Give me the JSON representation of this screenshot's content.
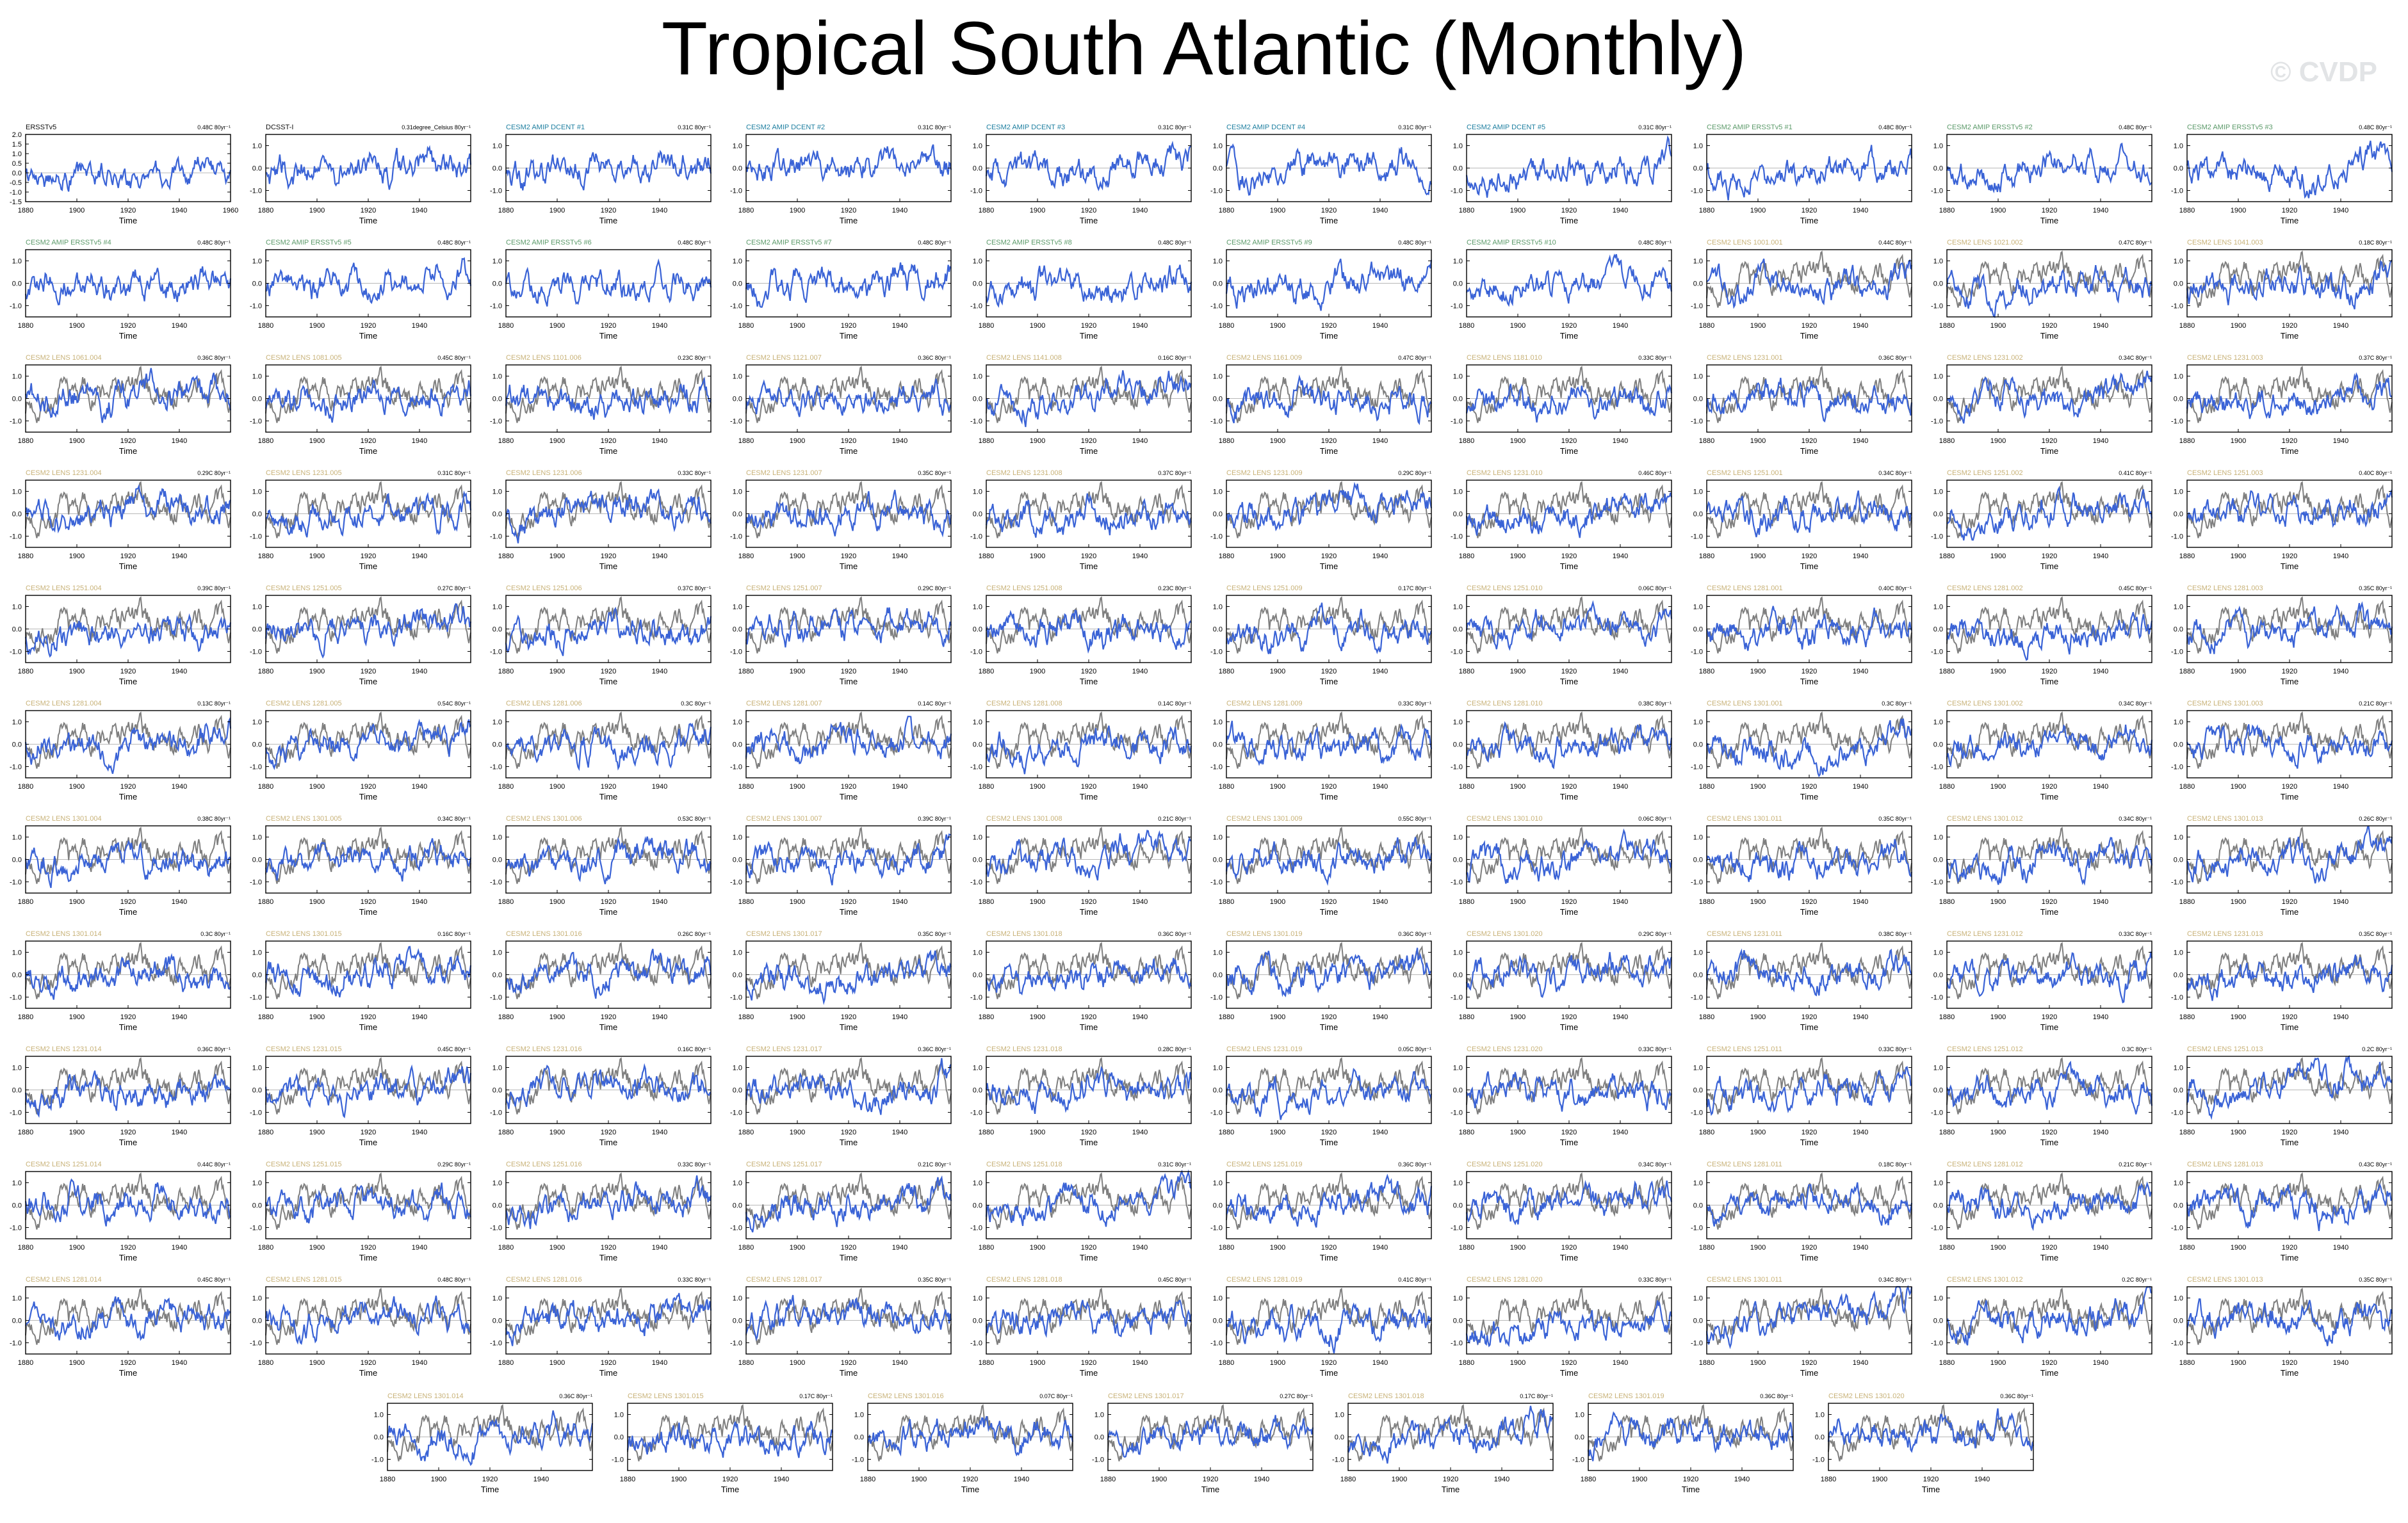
{
  "title": "Tropical South Atlantic (Monthly)",
  "watermark": "© CVDP",
  "colors": {
    "model_line": "#3a63d6",
    "obs_line": "#7f7f7f",
    "label_obs": "#111111",
    "label_amip_dcent": "#1e7fa0",
    "label_amip_ersst": "#5c9a6a",
    "label_lens": "#c8b278"
  },
  "chart_data": {
    "type": "line",
    "panel_count": 117,
    "x_ticks": [
      "1880",
      "1900",
      "1920",
      "1940",
      "1960"
    ],
    "y_ticks_first": [
      "2.0",
      "1.5",
      "1.0",
      "0.5",
      "0.0",
      "-0.5",
      "-1.0",
      "-1.5"
    ],
    "y_ticks": [
      "1.0",
      "0.0",
      "-1.0"
    ],
    "xlim": [
      1880,
      1960
    ],
    "ylim": [
      -1.5,
      2.0
    ],
    "xlabel": "Time",
    "panels": [
      {
        "label": "ERSSTv5",
        "trend": "0.48C 80yr⁻¹",
        "series": "obs"
      },
      {
        "label": "DCSST-I",
        "trend": "0.31degree_Celsius 80yr⁻¹",
        "series": "obs"
      },
      {
        "label": "CESM2 AMIP DCENT #1",
        "trend": "0.31C 80yr⁻¹",
        "series": "amip-dcent"
      },
      {
        "label": "CESM2 AMIP DCENT #2",
        "trend": "0.31C 80yr⁻¹",
        "series": "amip-dcent"
      },
      {
        "label": "CESM2 AMIP DCENT #3",
        "trend": "0.31C 80yr⁻¹",
        "series": "amip-dcent"
      },
      {
        "label": "CESM2 AMIP DCENT #4",
        "trend": "0.31C 80yr⁻¹",
        "series": "amip-dcent"
      },
      {
        "label": "CESM2 AMIP DCENT #5",
        "trend": "0.31C 80yr⁻¹",
        "series": "amip-dcent"
      },
      {
        "label": "CESM2 AMIP ERSSTv5 #1",
        "trend": "0.48C 80yr⁻¹",
        "series": "amip-ersst"
      },
      {
        "label": "CESM2 AMIP ERSSTv5 #2",
        "trend": "0.48C 80yr⁻¹",
        "series": "amip-ersst"
      },
      {
        "label": "CESM2 AMIP ERSSTv5 #3",
        "trend": "0.48C 80yr⁻¹",
        "series": "amip-ersst"
      },
      {
        "label": "CESM2 AMIP ERSSTv5 #4",
        "trend": "0.48C 80yr⁻¹",
        "series": "amip-ersst"
      },
      {
        "label": "CESM2 AMIP ERSSTv5 #5",
        "trend": "0.48C 80yr⁻¹",
        "series": "amip-ersst"
      },
      {
        "label": "CESM2 AMIP ERSSTv5 #6",
        "trend": "0.48C 80yr⁻¹",
        "series": "amip-ersst"
      },
      {
        "label": "CESM2 AMIP ERSSTv5 #7",
        "trend": "0.48C 80yr⁻¹",
        "series": "amip-ersst"
      },
      {
        "label": "CESM2 AMIP ERSSTv5 #8",
        "trend": "0.48C 80yr⁻¹",
        "series": "amip-ersst"
      },
      {
        "label": "CESM2 AMIP ERSSTv5 #9",
        "trend": "0.48C 80yr⁻¹",
        "series": "amip-ersst"
      },
      {
        "label": "CESM2 AMIP ERSSTv5 #10",
        "trend": "0.48C 80yr⁻¹",
        "series": "amip-ersst"
      },
      {
        "label": "CESM2 LENS 1001.001",
        "trend": "0.44C 80yr⁻¹",
        "series": "lens"
      },
      {
        "label": "CESM2 LENS 1021.002",
        "trend": "0.47C 80yr⁻¹",
        "series": "lens"
      },
      {
        "label": "CESM2 LENS 1041.003",
        "trend": "0.18C 80yr⁻¹",
        "series": "lens"
      },
      {
        "label": "CESM2 LENS 1061.004",
        "trend": "0.36C 80yr⁻¹",
        "series": "lens"
      },
      {
        "label": "CESM2 LENS 1081.005",
        "trend": "0.45C 80yr⁻¹",
        "series": "lens"
      },
      {
        "label": "CESM2 LENS 1101.006",
        "trend": "0.23C 80yr⁻¹",
        "series": "lens"
      },
      {
        "label": "CESM2 LENS 1121.007",
        "trend": "0.36C 80yr⁻¹",
        "series": "lens"
      },
      {
        "label": "CESM2 LENS 1141.008",
        "trend": "0.16C 80yr⁻¹",
        "series": "lens"
      },
      {
        "label": "CESM2 LENS 1161.009",
        "trend": "0.47C 80yr⁻¹",
        "series": "lens"
      },
      {
        "label": "CESM2 LENS 1181.010",
        "trend": "0.33C 80yr⁻¹",
        "series": "lens"
      },
      {
        "label": "CESM2 LENS 1231.001",
        "trend": "0.36C 80yr⁻¹",
        "series": "lens"
      },
      {
        "label": "CESM2 LENS 1231.002",
        "trend": "0.34C 80yr⁻¹",
        "series": "lens"
      },
      {
        "label": "CESM2 LENS 1231.003",
        "trend": "0.37C 80yr⁻¹",
        "series": "lens"
      },
      {
        "label": "CESM2 LENS 1231.004",
        "trend": "0.29C 80yr⁻¹",
        "series": "lens"
      },
      {
        "label": "CESM2 LENS 1231.005",
        "trend": "0.31C 80yr⁻¹",
        "series": "lens"
      },
      {
        "label": "CESM2 LENS 1231.006",
        "trend": "0.33C 80yr⁻¹",
        "series": "lens"
      },
      {
        "label": "CESM2 LENS 1231.007",
        "trend": "0.35C 80yr⁻¹",
        "series": "lens"
      },
      {
        "label": "CESM2 LENS 1231.008",
        "trend": "0.37C 80yr⁻¹",
        "series": "lens"
      },
      {
        "label": "CESM2 LENS 1231.009",
        "trend": "0.29C 80yr⁻¹",
        "series": "lens"
      },
      {
        "label": "CESM2 LENS 1231.010",
        "trend": "0.46C 80yr⁻¹",
        "series": "lens"
      },
      {
        "label": "CESM2 LENS 1251.001",
        "trend": "0.34C 80yr⁻¹",
        "series": "lens"
      },
      {
        "label": "CESM2 LENS 1251.002",
        "trend": "0.41C 80yr⁻¹",
        "series": "lens"
      },
      {
        "label": "CESM2 LENS 1251.003",
        "trend": "0.40C 80yr⁻¹",
        "series": "lens"
      },
      {
        "label": "CESM2 LENS 1251.004",
        "trend": "0.39C 80yr⁻¹",
        "series": "lens"
      },
      {
        "label": "CESM2 LENS 1251.005",
        "trend": "0.27C 80yr⁻¹",
        "series": "lens"
      },
      {
        "label": "CESM2 LENS 1251.006",
        "trend": "0.37C 80yr⁻¹",
        "series": "lens"
      },
      {
        "label": "CESM2 LENS 1251.007",
        "trend": "0.29C 80yr⁻¹",
        "series": "lens"
      },
      {
        "label": "CESM2 LENS 1251.008",
        "trend": "0.23C 80yr⁻¹",
        "series": "lens"
      },
      {
        "label": "CESM2 LENS 1251.009",
        "trend": "0.17C 80yr⁻¹",
        "series": "lens"
      },
      {
        "label": "CESM2 LENS 1251.010",
        "trend": "0.06C 80yr⁻¹",
        "series": "lens"
      },
      {
        "label": "CESM2 LENS 1281.001",
        "trend": "0.40C 80yr⁻¹",
        "series": "lens"
      },
      {
        "label": "CESM2 LENS 1281.002",
        "trend": "0.45C 80yr⁻¹",
        "series": "lens"
      },
      {
        "label": "CESM2 LENS 1281.003",
        "trend": "0.35C 80yr⁻¹",
        "series": "lens"
      },
      {
        "label": "CESM2 LENS 1281.004",
        "trend": "0.13C 80yr⁻¹",
        "series": "lens"
      },
      {
        "label": "CESM2 LENS 1281.005",
        "trend": "0.54C 80yr⁻¹",
        "series": "lens"
      },
      {
        "label": "CESM2 LENS 1281.006",
        "trend": "0.3C 80yr⁻¹",
        "series": "lens"
      },
      {
        "label": "CESM2 LENS 1281.007",
        "trend": "0.14C 80yr⁻¹",
        "series": "lens"
      },
      {
        "label": "CESM2 LENS 1281.008",
        "trend": "0.14C 80yr⁻¹",
        "series": "lens"
      },
      {
        "label": "CESM2 LENS 1281.009",
        "trend": "0.33C 80yr⁻¹",
        "series": "lens"
      },
      {
        "label": "CESM2 LENS 1281.010",
        "trend": "0.38C 80yr⁻¹",
        "series": "lens"
      },
      {
        "label": "CESM2 LENS 1301.001",
        "trend": "0.3C 80yr⁻¹",
        "series": "lens"
      },
      {
        "label": "CESM2 LENS 1301.002",
        "trend": "0.34C 80yr⁻¹",
        "series": "lens"
      },
      {
        "label": "CESM2 LENS 1301.003",
        "trend": "0.21C 80yr⁻¹",
        "series": "lens"
      },
      {
        "label": "CESM2 LENS 1301.004",
        "trend": "0.38C 80yr⁻¹",
        "series": "lens"
      },
      {
        "label": "CESM2 LENS 1301.005",
        "trend": "0.34C 80yr⁻¹",
        "series": "lens"
      },
      {
        "label": "CESM2 LENS 1301.006",
        "trend": "0.53C 80yr⁻¹",
        "series": "lens"
      },
      {
        "label": "CESM2 LENS 1301.007",
        "trend": "0.39C 80yr⁻¹",
        "series": "lens"
      },
      {
        "label": "CESM2 LENS 1301.008",
        "trend": "0.21C 80yr⁻¹",
        "series": "lens"
      },
      {
        "label": "CESM2 LENS 1301.009",
        "trend": "0.55C 80yr⁻¹",
        "series": "lens"
      },
      {
        "label": "CESM2 LENS 1301.010",
        "trend": "0.06C 80yr⁻¹",
        "series": "lens"
      },
      {
        "label": "CESM2 LENS 1301.011",
        "trend": "0.35C 80yr⁻¹",
        "series": "lens"
      },
      {
        "label": "CESM2 LENS 1301.012",
        "trend": "0.34C 80yr⁻¹",
        "series": "lens"
      },
      {
        "label": "CESM2 LENS 1301.013",
        "trend": "0.26C 80yr⁻¹",
        "series": "lens"
      },
      {
        "label": "CESM2 LENS 1301.014",
        "trend": "0.3C 80yr⁻¹",
        "series": "lens"
      },
      {
        "label": "CESM2 LENS 1301.015",
        "trend": "0.16C 80yr⁻¹",
        "series": "lens"
      },
      {
        "label": "CESM2 LENS 1301.016",
        "trend": "0.26C 80yr⁻¹",
        "series": "lens"
      },
      {
        "label": "CESM2 LENS 1301.017",
        "trend": "0.35C 80yr⁻¹",
        "series": "lens"
      },
      {
        "label": "CESM2 LENS 1301.018",
        "trend": "0.36C 80yr⁻¹",
        "series": "lens"
      },
      {
        "label": "CESM2 LENS 1301.019",
        "trend": "0.36C 80yr⁻¹",
        "series": "lens"
      },
      {
        "label": "CESM2 LENS 1301.020",
        "trend": "0.29C 80yr⁻¹",
        "series": "lens"
      },
      {
        "label": "CESM2 LENS 1231.011",
        "trend": "0.38C 80yr⁻¹",
        "series": "lens"
      },
      {
        "label": "CESM2 LENS 1231.012",
        "trend": "0.33C 80yr⁻¹",
        "series": "lens"
      },
      {
        "label": "CESM2 LENS 1231.013",
        "trend": "0.35C 80yr⁻¹",
        "series": "lens"
      },
      {
        "label": "CESM2 LENS 1231.014",
        "trend": "0.36C 80yr⁻¹",
        "series": "lens"
      },
      {
        "label": "CESM2 LENS 1231.015",
        "trend": "0.45C 80yr⁻¹",
        "series": "lens"
      },
      {
        "label": "CESM2 LENS 1231.016",
        "trend": "0.16C 80yr⁻¹",
        "series": "lens"
      },
      {
        "label": "CESM2 LENS 1231.017",
        "trend": "0.36C 80yr⁻¹",
        "series": "lens"
      },
      {
        "label": "CESM2 LENS 1231.018",
        "trend": "0.28C 80yr⁻¹",
        "series": "lens"
      },
      {
        "label": "CESM2 LENS 1231.019",
        "trend": "0.05C 80yr⁻¹",
        "series": "lens"
      },
      {
        "label": "CESM2 LENS 1231.020",
        "trend": "0.33C 80yr⁻¹",
        "series": "lens"
      },
      {
        "label": "CESM2 LENS 1251.011",
        "trend": "0.33C 80yr⁻¹",
        "series": "lens"
      },
      {
        "label": "CESM2 LENS 1251.012",
        "trend": "0.3C 80yr⁻¹",
        "series": "lens"
      },
      {
        "label": "CESM2 LENS 1251.013",
        "trend": "0.2C 80yr⁻¹",
        "series": "lens"
      },
      {
        "label": "CESM2 LENS 1251.014",
        "trend": "0.44C 80yr⁻¹",
        "series": "lens"
      },
      {
        "label": "CESM2 LENS 1251.015",
        "trend": "0.29C 80yr⁻¹",
        "series": "lens"
      },
      {
        "label": "CESM2 LENS 1251.016",
        "trend": "0.33C 80yr⁻¹",
        "series": "lens"
      },
      {
        "label": "CESM2 LENS 1251.017",
        "trend": "0.21C 80yr⁻¹",
        "series": "lens"
      },
      {
        "label": "CESM2 LENS 1251.018",
        "trend": "0.31C 80yr⁻¹",
        "series": "lens"
      },
      {
        "label": "CESM2 LENS 1251.019",
        "trend": "0.36C 80yr⁻¹",
        "series": "lens"
      },
      {
        "label": "CESM2 LENS 1251.020",
        "trend": "0.34C 80yr⁻¹",
        "series": "lens"
      },
      {
        "label": "CESM2 LENS 1281.011",
        "trend": "0.18C 80yr⁻¹",
        "series": "lens"
      },
      {
        "label": "CESM2 LENS 1281.012",
        "trend": "0.21C 80yr⁻¹",
        "series": "lens"
      },
      {
        "label": "CESM2 LENS 1281.013",
        "trend": "0.43C 80yr⁻¹",
        "series": "lens"
      },
      {
        "label": "CESM2 LENS 1281.014",
        "trend": "0.45C 80yr⁻¹",
        "series": "lens"
      },
      {
        "label": "CESM2 LENS 1281.015",
        "trend": "0.48C 80yr⁻¹",
        "series": "lens"
      },
      {
        "label": "CESM2 LENS 1281.016",
        "trend": "0.33C 80yr⁻¹",
        "series": "lens"
      },
      {
        "label": "CESM2 LENS 1281.017",
        "trend": "0.35C 80yr⁻¹",
        "series": "lens"
      },
      {
        "label": "CESM2 LENS 1281.018",
        "trend": "0.45C 80yr⁻¹",
        "series": "lens"
      },
      {
        "label": "CESM2 LENS 1281.019",
        "trend": "0.41C 80yr⁻¹",
        "series": "lens"
      },
      {
        "label": "CESM2 LENS 1281.020",
        "trend": "0.33C 80yr⁻¹",
        "series": "lens"
      },
      {
        "label": "CESM2 LENS 1301.011",
        "trend": "0.34C 80yr⁻¹",
        "series": "lens"
      },
      {
        "label": "CESM2 LENS 1301.012",
        "trend": "0.2C 80yr⁻¹",
        "series": "lens"
      },
      {
        "label": "CESM2 LENS 1301.013",
        "trend": "0.35C 80yr⁻¹",
        "series": "lens"
      },
      {
        "label": "CESM2 LENS 1301.014",
        "trend": "0.36C 80yr⁻¹",
        "series": "lens"
      },
      {
        "label": "CESM2 LENS 1301.015",
        "trend": "0.17C 80yr⁻¹",
        "series": "lens"
      },
      {
        "label": "CESM2 LENS 1301.016",
        "trend": "0.07C 80yr⁻¹",
        "series": "lens"
      },
      {
        "label": "CESM2 LENS 1301.017",
        "trend": "0.27C 80yr⁻¹",
        "series": "lens"
      },
      {
        "label": "CESM2 LENS 1301.018",
        "trend": "0.17C 80yr⁻¹",
        "series": "lens"
      },
      {
        "label": "CESM2 LENS 1301.019",
        "trend": "0.36C 80yr⁻¹",
        "series": "lens"
      },
      {
        "label": "CESM2 LENS 1301.020",
        "trend": "0.36C 80yr⁻¹",
        "series": "lens"
      }
    ]
  }
}
